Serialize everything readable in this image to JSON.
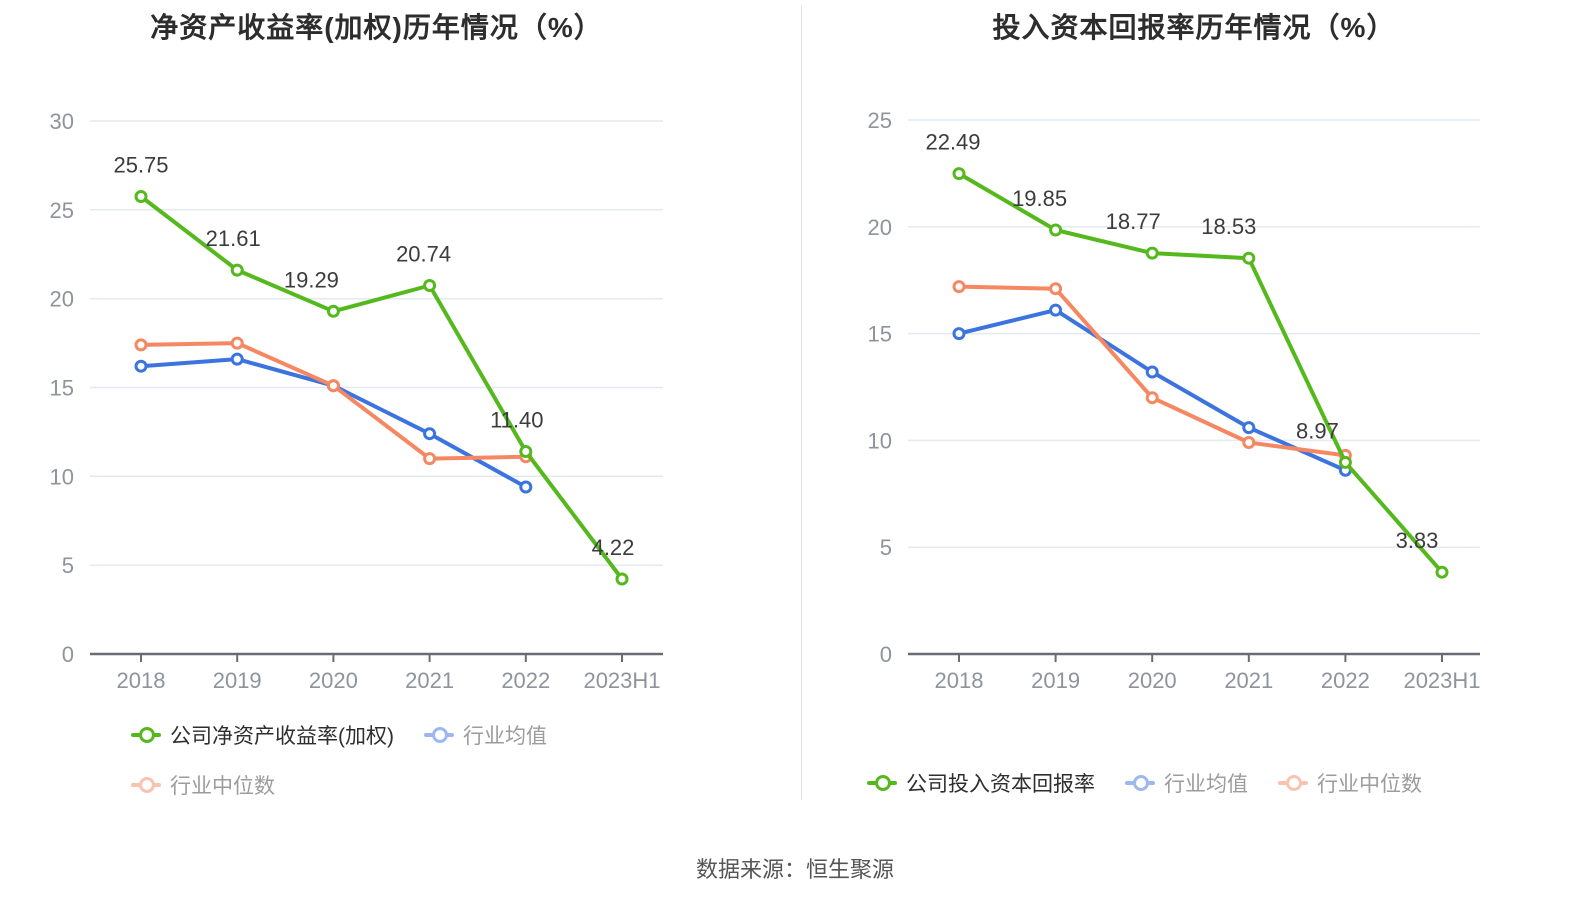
{
  "source_text": "数据来源：恒生聚源",
  "palette": {
    "company_green": "#55b91e",
    "industry_blue": "#3b74de",
    "industry_orange": "#f58862",
    "grid": "#e4e8f2",
    "axis": "#696c74",
    "tick_text": "#8e939c",
    "label_text": "#3c3c3c"
  },
  "chart_data": [
    {
      "type": "line",
      "title": "净资产收益率(加权)历年情况（%）",
      "categories": [
        "2018",
        "2019",
        "2020",
        "2021",
        "2022",
        "2023H1"
      ],
      "xlabel": "",
      "ylabel": "",
      "ylim": [
        0,
        30
      ],
      "yticks": [
        0,
        5,
        10,
        15,
        20,
        25,
        30
      ],
      "grid": true,
      "legend_position": "bottom",
      "series": [
        {
          "name": "公司净资产收益率(加权)",
          "color": "#55b91e",
          "muted": false,
          "values": [
            25.75,
            21.61,
            19.29,
            20.74,
            11.4,
            4.22
          ],
          "labels": [
            "25.75",
            "21.61",
            "19.29",
            "20.74",
            "11.40",
            "4.22"
          ]
        },
        {
          "name": "行业均值",
          "color": "#3b74de",
          "muted": true,
          "values": [
            16.2,
            16.6,
            15.1,
            12.4,
            9.4,
            null
          ]
        },
        {
          "name": "行业中位数",
          "color": "#f58862",
          "muted": true,
          "values": [
            17.4,
            17.5,
            15.1,
            11.0,
            11.1,
            null
          ]
        }
      ],
      "legend_rows": [
        [
          0,
          1
        ],
        [
          2
        ]
      ]
    },
    {
      "type": "line",
      "title": "投入资本回报率历年情况（%）",
      "categories": [
        "2018",
        "2019",
        "2020",
        "2021",
        "2022",
        "2023H1"
      ],
      "xlabel": "",
      "ylabel": "",
      "ylim": [
        0,
        25
      ],
      "yticks": [
        0,
        5,
        10,
        15,
        20,
        25
      ],
      "grid": true,
      "legend_position": "bottom",
      "series": [
        {
          "name": "公司投入资本回报率",
          "color": "#55b91e",
          "muted": false,
          "values": [
            22.49,
            19.85,
            18.77,
            18.53,
            8.97,
            3.83
          ],
          "labels": [
            "22.49",
            "19.85",
            "18.77",
            "18.53",
            "8.97",
            "3.83"
          ]
        },
        {
          "name": "行业均值",
          "color": "#3b74de",
          "muted": true,
          "values": [
            15.0,
            16.1,
            13.2,
            10.6,
            8.6,
            null
          ]
        },
        {
          "name": "行业中位数",
          "color": "#f58862",
          "muted": true,
          "values": [
            17.2,
            17.1,
            12.0,
            9.9,
            9.3,
            null
          ]
        }
      ],
      "legend_rows": [
        [
          0,
          1,
          2
        ]
      ]
    }
  ]
}
